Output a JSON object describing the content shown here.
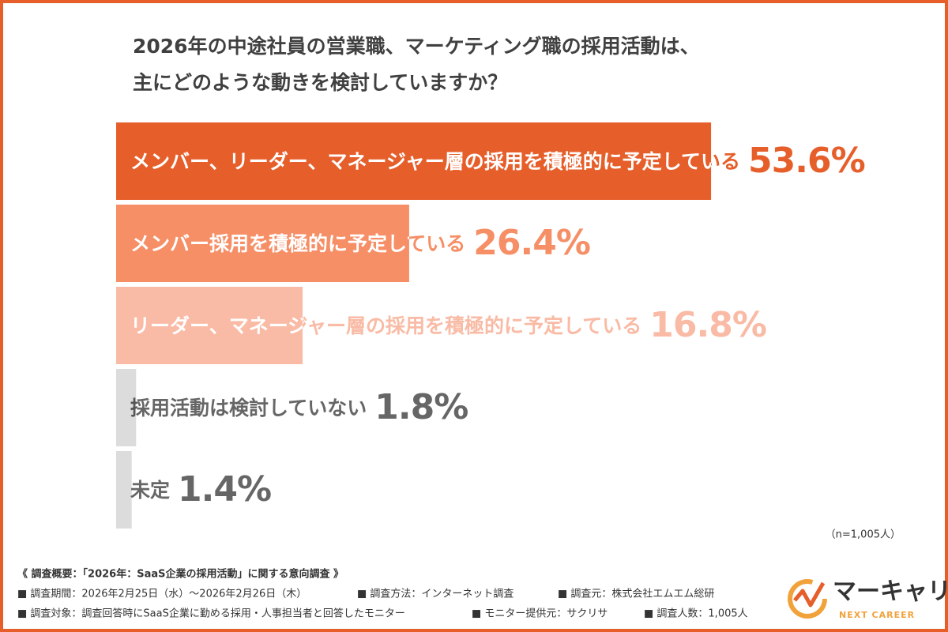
{
  "chart_data": {
    "type": "bar",
    "orientation": "horizontal",
    "title": [
      "2026年の中途社員の営業職、マーケティング職の採用活動は、",
      "主にどのような動きを検討していますか？"
    ],
    "categories": [
      "メンバー、リーダー、マネージャー層の採用を積極的に予定している",
      "メンバー採用を積極的に予定している",
      "リーダー、マネージャー層の採用を積極的に予定している",
      "採用活動は検討していない",
      "未定"
    ],
    "values": [
      53.6,
      26.4,
      16.8,
      1.8,
      1.4
    ],
    "value_labels": [
      "53.6%",
      "26.4%",
      "16.8%",
      "1.8%",
      "1.4%"
    ],
    "colors": [
      "#e65f2b",
      "#f68e66",
      "#f9bba5",
      "#dcdcdc",
      "#dcdcdc"
    ],
    "label_colors": [
      "#ffffff",
      "#ffffff",
      "#ffffff",
      "#555555",
      "#555555"
    ],
    "value_colors": [
      "#e65f2b",
      "#f68e66",
      "#f9bba5",
      "#666666",
      "#666666"
    ],
    "note": "（n=1,005人）",
    "survey": [
      [
        "《 調査概要：「2026年：SaaS企業の採用活動」に関する意向調査 》"
      ],
      [
        "■ 調査期間：2026年2月25日（水）〜2026年2月26日（木）",
        "■ 調査方法：インターネット調査",
        "■ 調査元：株式会社エムエム総研"
      ],
      [
        "■ 調査対象：調査回答時にSaaS企業に勤める採用・人事担当者と回答したモニター",
        "■ モニター提供元：サクリサ",
        "■ 調査人数：1,005人"
      ]
    ],
    "brand": {
      "name": "マーキャリ",
      "tagline": "NEXT CAREER"
    }
  }
}
